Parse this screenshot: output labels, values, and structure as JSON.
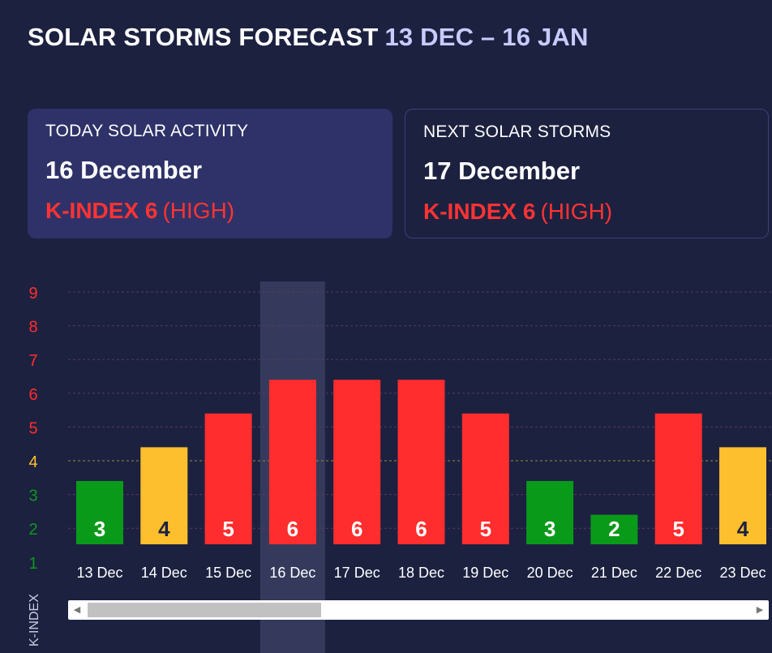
{
  "header": {
    "title": "SOLAR STORMS FORECAST",
    "range": "13 DEC – 16 JAN"
  },
  "today_card": {
    "label": "TODAY SOLAR ACTIVITY",
    "date": "16 December",
    "kindex": "K-INDEX 6",
    "level": "(HIGH)"
  },
  "next_card": {
    "label": "NEXT SOLAR STORMS",
    "date": "17 December",
    "kindex": "K-INDEX 6",
    "level": "(HIGH)"
  },
  "colors": {
    "background": "#1c2140",
    "low": "#0a9a1a",
    "medium": "#fdbf2d",
    "high": "#ff2d2d",
    "highlight": "#3a3e62"
  },
  "chart_data": {
    "type": "bar",
    "ylabel": "K-INDEX",
    "xlabel": "",
    "ylim": [
      1,
      9
    ],
    "yticks": [
      "1",
      "2",
      "3",
      "4",
      "5",
      "6",
      "7",
      "8",
      "9"
    ],
    "highlighted_category": "16 Dec",
    "categories": [
      "13 Dec",
      "14 Dec",
      "15 Dec",
      "16 Dec",
      "17 Dec",
      "18 Dec",
      "19 Dec",
      "20 Dec",
      "21 Dec",
      "22 Dec",
      "23 Dec"
    ],
    "values": [
      3,
      4,
      5,
      6,
      6,
      6,
      5,
      3,
      2,
      5,
      4
    ],
    "value_labels": [
      "3",
      "4",
      "5",
      "6",
      "6",
      "6",
      "5",
      "3",
      "2",
      "5",
      "4"
    ]
  }
}
